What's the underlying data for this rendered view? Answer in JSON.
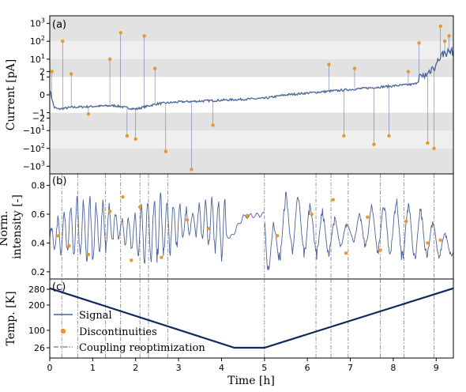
{
  "colors": {
    "signal": "#4b6399",
    "discontinuity": "#e8962e",
    "temp": "#0e2a5c",
    "reopt": "#555555",
    "band_dark": "#e2e2e2",
    "band_light": "#efefef"
  },
  "chart_data": [
    {
      "type": "line",
      "panel_label": "(a)",
      "ylabel": "Current [pA]",
      "yscale": "symlog",
      "xlim": [
        0,
        9.4
      ],
      "yticks": [
        "10^3",
        "10^2",
        "10^1",
        "2",
        "1",
        "0",
        "-1",
        "-2",
        "-10^1",
        "-10^2",
        "-10^3"
      ],
      "series": [
        {
          "name": "Signal",
          "x": [
            0,
            0.1,
            0.2,
            0.5,
            1.0,
            1.5,
            2.0,
            2.5,
            3.0,
            3.5,
            4.0,
            4.5,
            5.0,
            5.5,
            6.0,
            6.5,
            7.0,
            7.5,
            8.0,
            8.5,
            8.8,
            9.0,
            9.2,
            9.4
          ],
          "y": [
            0.3,
            -0.7,
            -0.8,
            -0.7,
            -0.65,
            -0.6,
            -0.8,
            -0.5,
            -0.4,
            -0.35,
            -0.3,
            -0.25,
            -0.2,
            0.0,
            0.1,
            0.2,
            0.3,
            0.4,
            0.5,
            0.6,
            1.2,
            4,
            20,
            25
          ]
        },
        {
          "name": "Discontinuities",
          "x": [
            0.05,
            0.3,
            0.5,
            0.9,
            1.4,
            1.65,
            1.8,
            2.0,
            2.2,
            2.45,
            2.7,
            3.3,
            3.8,
            6.5,
            6.85,
            7.1,
            7.55,
            7.9,
            8.35,
            8.6,
            8.8,
            8.95,
            9.1,
            9.2,
            9.3
          ],
          "y": [
            2,
            100,
            1.5,
            -1.2,
            10,
            300,
            -20,
            -30,
            200,
            3,
            -150,
            -1500,
            -5,
            5,
            -20,
            3,
            -60,
            -20,
            2,
            80,
            -50,
            -100,
            700,
            100,
            200
          ]
        }
      ]
    },
    {
      "type": "line",
      "panel_label": "(b)",
      "ylabel": "Norm. intensity [-]",
      "xlim": [
        0,
        9.4
      ],
      "ylim": [
        0.15,
        0.88
      ],
      "yticks": [
        0.2,
        0.4,
        0.6,
        0.8
      ],
      "series": [
        {
          "name": "Signal",
          "x": [
            0,
            0.5,
            1.0,
            1.5,
            2.0,
            2.5,
            3.0,
            3.5,
            4.0,
            4.2,
            4.5,
            5.0,
            5.1,
            5.5,
            6.0,
            6.5,
            7.0,
            7.5,
            8.0,
            8.5,
            9.0,
            9.4
          ],
          "y": [
            0.43,
            0.5,
            0.48,
            0.52,
            0.45,
            0.5,
            0.53,
            0.55,
            0.5,
            0.43,
            0.58,
            0.6,
            0.3,
            0.55,
            0.5,
            0.45,
            0.48,
            0.5,
            0.5,
            0.47,
            0.42,
            0.36
          ]
        },
        {
          "name": "Discontinuities",
          "x": [
            0.2,
            0.45,
            0.9,
            1.4,
            1.7,
            1.9,
            2.1,
            2.6,
            3.2,
            3.7,
            4.6,
            5.3,
            6.1,
            6.6,
            6.9,
            7.4,
            7.7,
            8.3,
            8.8,
            9.1
          ],
          "y": [
            0.45,
            0.38,
            0.32,
            0.62,
            0.72,
            0.28,
            0.65,
            0.3,
            0.56,
            0.5,
            0.59,
            0.45,
            0.6,
            0.7,
            0.33,
            0.58,
            0.35,
            0.55,
            0.4,
            0.42
          ]
        }
      ]
    },
    {
      "type": "line",
      "panel_label": "(c)",
      "ylabel": "Temp. [K]",
      "xlabel": "Time [h]",
      "xlim": [
        0,
        9.4
      ],
      "xticks": [
        0,
        1,
        2,
        3,
        4,
        5,
        6,
        7,
        8,
        9
      ],
      "yticks": [
        26,
        100,
        200,
        280
      ],
      "series": [
        {
          "name": "Signal",
          "x": [
            0,
            4.3,
            5.0,
            9.4
          ],
          "y": [
            285,
            26,
            26,
            285
          ]
        }
      ],
      "legend": {
        "position": "lower-left",
        "entries": [
          "Signal",
          "Discontinuities",
          "Coupling reoptimization"
        ]
      }
    }
  ],
  "reoptimization_times": [
    0.28,
    0.65,
    1.3,
    1.65,
    2.1,
    2.3,
    2.75,
    5.0,
    6.2,
    6.55,
    6.95,
    7.7,
    8.25,
    8.95
  ]
}
